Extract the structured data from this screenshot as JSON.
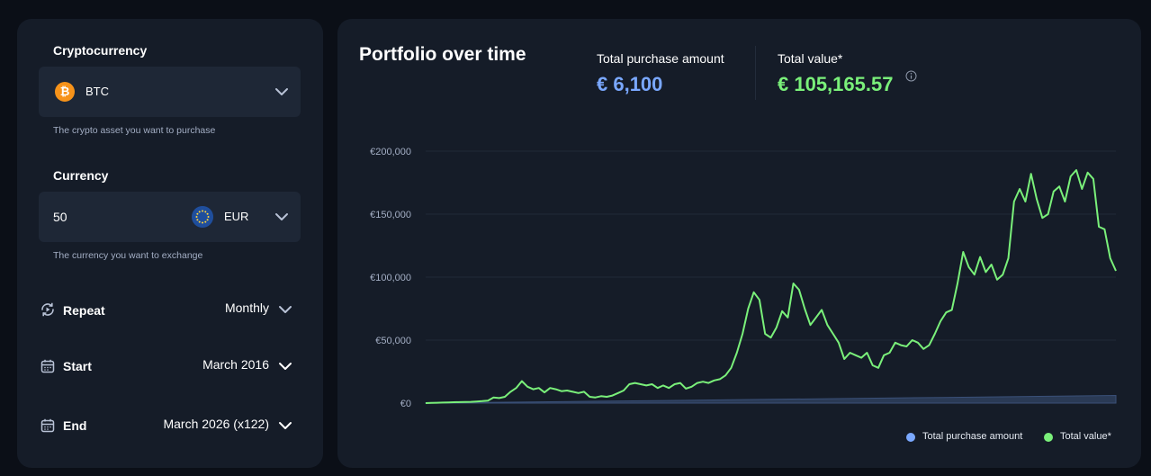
{
  "form": {
    "crypto_label": "Cryptocurrency",
    "crypto_value": "BTC",
    "crypto_hint": "The crypto asset you want to purchase",
    "currency_label": "Currency",
    "amount": "50",
    "currency_value": "EUR",
    "currency_hint": "The currency you want to exchange",
    "repeat_label": "Repeat",
    "repeat_value": "Monthly",
    "start_label": "Start",
    "start_value": "March 2016",
    "end_label": "End",
    "end_value": "March 2026 (x122)"
  },
  "portfolio": {
    "title": "Portfolio over time",
    "purchase_label": "Total purchase amount",
    "purchase_value": "€ 6,100",
    "value_label": "Total value*",
    "value_value": "€ 105,165.57"
  },
  "colors": {
    "purchase": "#7aa8ff",
    "value": "#7af07a",
    "grid": "#212a37",
    "axis_text": "#a3aec4"
  },
  "icons": [
    "bitcoin-icon",
    "eu-flag-icon",
    "chevron-down-icon",
    "repeat-icon",
    "calendar-icon",
    "info-icon"
  ],
  "chart_data": {
    "type": "area",
    "x_start": "March 2016",
    "x_end": "March 2026",
    "y_ticks": [
      "€0",
      "€50,000",
      "€100,000",
      "€150,000",
      "€200,000"
    ],
    "ylim": [
      0,
      200000
    ],
    "legend_position": "bottom-right",
    "grid": true,
    "series": [
      {
        "name": "Total purchase amount",
        "values": [
          50,
          500,
          1000,
          1500,
          2000,
          2500,
          3000,
          3500,
          4000,
          4500,
          5000,
          5500,
          6100
        ]
      },
      {
        "name": "Total value*",
        "values": [
          0,
          200,
          250,
          400,
          600,
          700,
          800,
          900,
          1000,
          1300,
          1600,
          2000,
          4500,
          4000,
          5000,
          9000,
          12000,
          17500,
          13000,
          11000,
          12000,
          8500,
          12000,
          11000,
          9500,
          10000,
          9000,
          8000,
          9000,
          5000,
          4500,
          5500,
          5000,
          6000,
          8000,
          10000,
          15000,
          16000,
          15000,
          14000,
          15000,
          12000,
          14000,
          12000,
          15000,
          16000,
          11500,
          13000,
          16000,
          17000,
          16000,
          18000,
          19000,
          22000,
          28000,
          40000,
          55000,
          75000,
          88000,
          82000,
          55000,
          52000,
          60000,
          73000,
          68000,
          95000,
          90000,
          75000,
          62000,
          68000,
          74000,
          62000,
          55000,
          48000,
          35000,
          40000,
          38000,
          36000,
          40000,
          30000,
          28000,
          38000,
          40000,
          48000,
          46000,
          45000,
          50000,
          48000,
          43000,
          46000,
          55000,
          65000,
          72000,
          74000,
          95000,
          120000,
          108000,
          102000,
          116000,
          104000,
          110000,
          98000,
          102000,
          115000,
          160000,
          170000,
          160000,
          182000,
          162000,
          147000,
          150000,
          168000,
          172000,
          160000,
          180000,
          185000,
          170000,
          183000,
          178000,
          140000,
          138000,
          115000,
          105000
        ]
      }
    ]
  }
}
